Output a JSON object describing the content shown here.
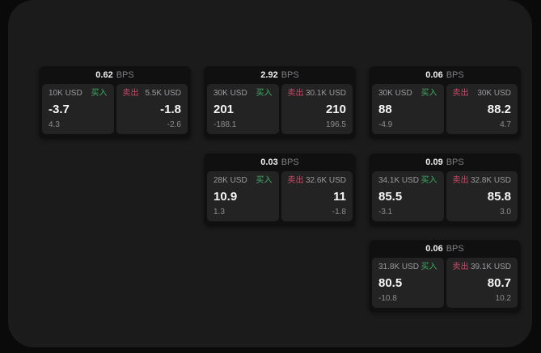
{
  "labels": {
    "bps": "BPS",
    "buy": "买入",
    "sell": "卖出"
  },
  "colors": {
    "page_bg": "#0a0a0a",
    "panel_bg": "#1b1b1c",
    "card_bg": "#101011",
    "tile_bg": "#232324",
    "buy_green": "#3fae62",
    "sell_red": "#c44d68",
    "text_primary": "#f5f5f5",
    "text_secondary": "#9b9b9e"
  },
  "cards": [
    {
      "bps": "0.62",
      "buy": {
        "size": "10K USD",
        "price": "-3.7",
        "delta": "4.3"
      },
      "sell": {
        "size": "5.5K USD",
        "price": "-1.8",
        "delta": "-2.6"
      }
    },
    {
      "bps": "2.92",
      "buy": {
        "size": "30K USD",
        "price": "201",
        "delta": "-188.1"
      },
      "sell": {
        "size": "30.1K USD",
        "price": "210",
        "delta": "196.5"
      }
    },
    {
      "bps": "0.06",
      "buy": {
        "size": "30K USD",
        "price": "88",
        "delta": "-4.9"
      },
      "sell": {
        "size": "30K USD",
        "price": "88.2",
        "delta": "4.7"
      }
    },
    {
      "bps": "0.03",
      "buy": {
        "size": "28K USD",
        "price": "10.9",
        "delta": "1.3"
      },
      "sell": {
        "size": "32.6K USD",
        "price": "11",
        "delta": "-1.8"
      }
    },
    {
      "bps": "0.09",
      "buy": {
        "size": "34.1K USD",
        "price": "85.5",
        "delta": "-3.1"
      },
      "sell": {
        "size": "32.8K USD",
        "price": "85.8",
        "delta": "3.0"
      }
    },
    {
      "bps": "0.06",
      "buy": {
        "size": "31.8K USD",
        "price": "80.5",
        "delta": "-10.8"
      },
      "sell": {
        "size": "39.1K USD",
        "price": "80.7",
        "delta": "10.2"
      }
    }
  ]
}
